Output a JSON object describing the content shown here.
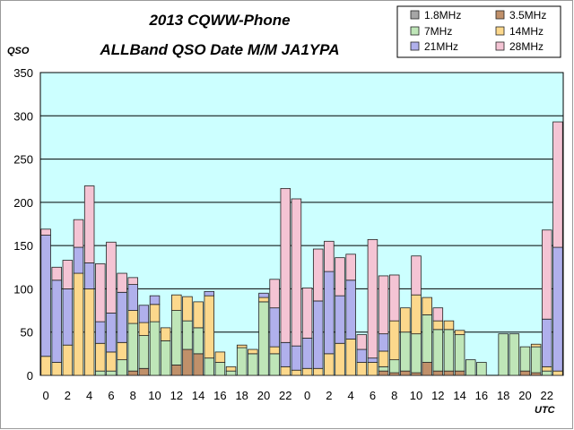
{
  "chart_data": {
    "type": "bar",
    "stacked": true,
    "title": "2013 CQWW-Phone",
    "subtitle": "ALLBand QSO Date M/M JA1YPA",
    "ylabel": "QSO",
    "xlabel": "UTC",
    "ylim": [
      0,
      350
    ],
    "yticks": [
      0,
      50,
      100,
      150,
      200,
      250,
      300,
      350
    ],
    "grid": true,
    "legend_position": "top-right",
    "x_tick_labels": [
      "0",
      "2",
      "4",
      "6",
      "8",
      "10",
      "12",
      "14",
      "16",
      "18",
      "20",
      "22",
      "0",
      "2",
      "4",
      "6",
      "8",
      "10",
      "12",
      "14",
      "16",
      "18",
      "20",
      "22"
    ],
    "categories": [
      "0",
      "1",
      "2",
      "3",
      "4",
      "5",
      "6",
      "7",
      "8",
      "9",
      "10",
      "11",
      "12",
      "13",
      "14",
      "15",
      "16",
      "17",
      "18",
      "19",
      "20",
      "21",
      "22",
      "23",
      "0",
      "1",
      "2",
      "3",
      "4",
      "5",
      "6",
      "7",
      "8",
      "9",
      "10",
      "11",
      "12",
      "13",
      "14",
      "15",
      "16",
      "17",
      "18",
      "19",
      "20",
      "21",
      "22",
      "23"
    ],
    "series": [
      {
        "name": "1.8MHz",
        "color": "#a6a6a6",
        "values": [
          0,
          0,
          0,
          0,
          0,
          0,
          0,
          0,
          0,
          0,
          0,
          0,
          0,
          0,
          0,
          0,
          0,
          0,
          0,
          0,
          0,
          0,
          0,
          0,
          0,
          0,
          0,
          0,
          0,
          0,
          0,
          0,
          0,
          0,
          0,
          0,
          0,
          0,
          0,
          0,
          0,
          0,
          0,
          0,
          0,
          0,
          0,
          0
        ]
      },
      {
        "name": "3.5MHz",
        "color": "#c0906a",
        "values": [
          0,
          0,
          0,
          0,
          0,
          0,
          0,
          0,
          5,
          8,
          0,
          0,
          12,
          30,
          25,
          0,
          0,
          0,
          0,
          0,
          0,
          0,
          0,
          0,
          0,
          0,
          0,
          0,
          0,
          0,
          0,
          5,
          3,
          5,
          3,
          15,
          5,
          5,
          5,
          0,
          0,
          0,
          0,
          0,
          5,
          3,
          0,
          0
        ]
      },
      {
        "name": "7MHz",
        "color": "#bfe6b8",
        "values": [
          0,
          0,
          0,
          0,
          0,
          5,
          5,
          18,
          55,
          38,
          62,
          40,
          63,
          33,
          30,
          20,
          15,
          5,
          32,
          25,
          85,
          25,
          0,
          0,
          0,
          0,
          0,
          0,
          0,
          0,
          0,
          5,
          15,
          45,
          45,
          55,
          48,
          48,
          42,
          18,
          15,
          0,
          48,
          48,
          28,
          30,
          5,
          0
        ]
      },
      {
        "name": "14MHz",
        "color": "#fcd88c",
        "values": [
          22,
          15,
          35,
          118,
          100,
          32,
          22,
          20,
          15,
          15,
          20,
          15,
          18,
          28,
          30,
          72,
          12,
          5,
          3,
          5,
          5,
          8,
          10,
          6,
          8,
          8,
          25,
          37,
          42,
          15,
          15,
          18,
          45,
          28,
          45,
          20,
          10,
          10,
          5,
          0,
          0,
          0,
          0,
          0,
          0,
          3,
          5,
          5
        ]
      },
      {
        "name": "21MHz",
        "color": "#b0b0ec",
        "values": [
          140,
          95,
          65,
          30,
          30,
          25,
          45,
          58,
          30,
          20,
          10,
          0,
          0,
          0,
          0,
          5,
          0,
          0,
          0,
          0,
          5,
          45,
          28,
          28,
          35,
          78,
          95,
          55,
          68,
          15,
          5,
          20,
          0,
          0,
          0,
          0,
          0,
          0,
          0,
          0,
          0,
          0,
          0,
          0,
          0,
          0,
          55,
          143
        ]
      },
      {
        "name": "28MHz",
        "color": "#f4c4d4",
        "values": [
          7,
          15,
          33,
          32,
          89,
          67,
          82,
          22,
          8,
          0,
          0,
          0,
          0,
          0,
          0,
          0,
          0,
          0,
          0,
          0,
          0,
          33,
          178,
          170,
          58,
          60,
          35,
          44,
          30,
          17,
          137,
          67,
          53,
          0,
          45,
          0,
          15,
          0,
          0,
          0,
          0,
          0,
          0,
          0,
          0,
          0,
          103,
          145
        ]
      }
    ]
  }
}
